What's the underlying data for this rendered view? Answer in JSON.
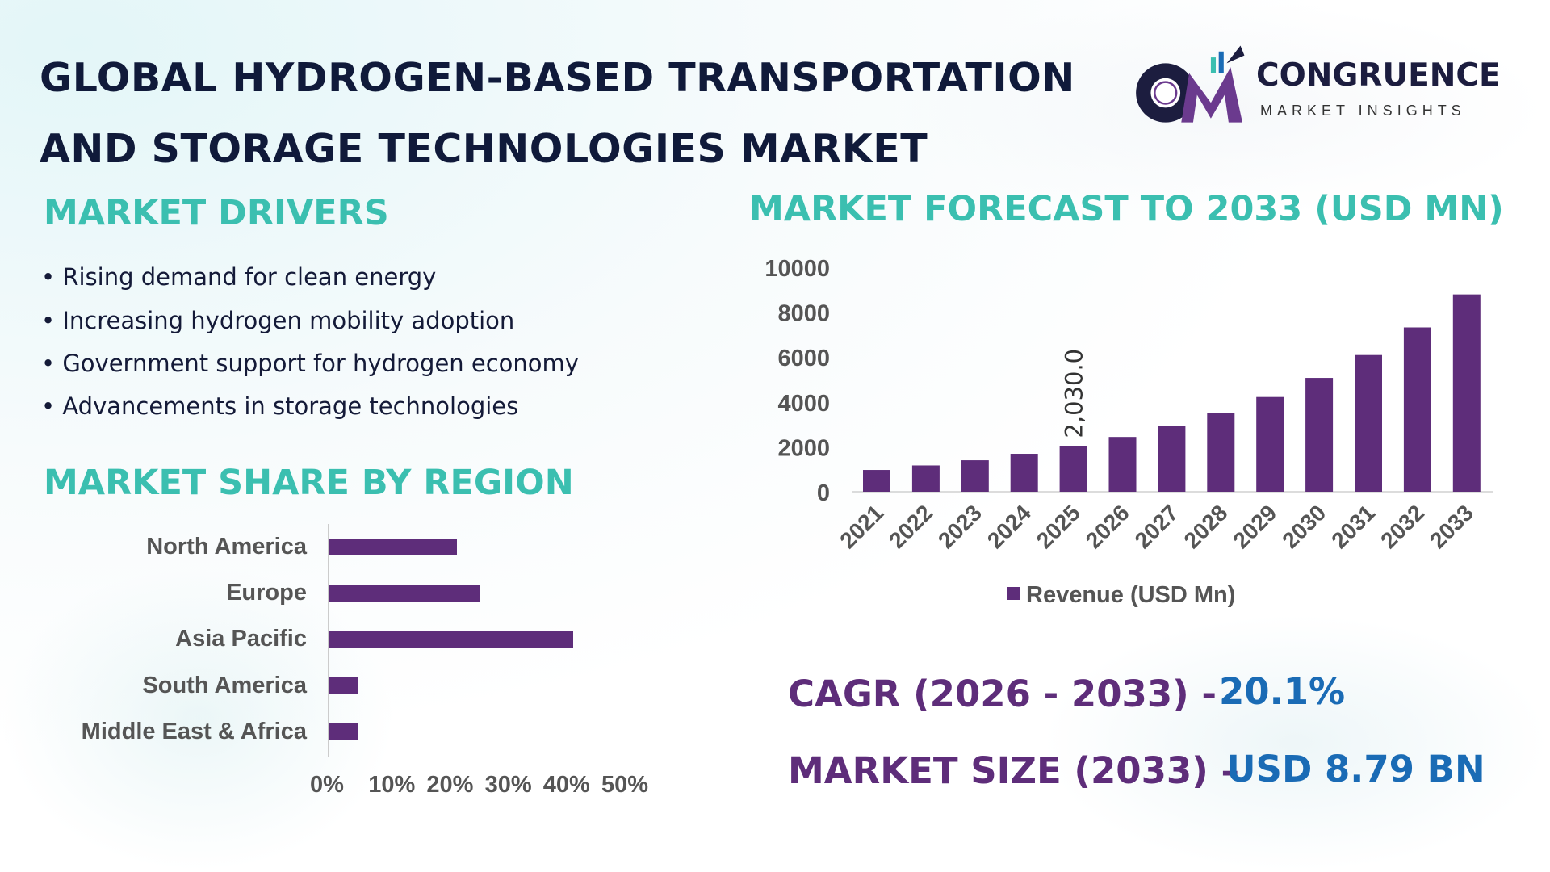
{
  "title": {
    "line1": "GLOBAL HYDROGEN-BASED TRANSPORTATION",
    "line2": "AND STORAGE TECHNOLOGIES MARKET"
  },
  "logo": {
    "name": "CONGRUENCE",
    "tagline": "MARKET INSIGHTS"
  },
  "drivers": {
    "heading": "MARKET DRIVERS",
    "items": [
      "Rising demand for clean energy",
      "Increasing hydrogen mobility adoption",
      "Government support for hydrogen economy",
      "Advancements in storage technologies"
    ]
  },
  "stats": {
    "cagr_label": "CAGR (2026 - 2033) -",
    "cagr_value": "20.1%",
    "size_label": "MARKET SIZE (2033) –",
    "size_value": "USD 8.79 BN"
  },
  "colors": {
    "bar": "#5e2d7a",
    "teal": "#3bbfb0",
    "blue": "#1a6bb5"
  },
  "chart_data": [
    {
      "type": "bar",
      "orientation": "horizontal",
      "title": "MARKET SHARE BY REGION",
      "categories": [
        "North America",
        "Europe",
        "Asia Pacific",
        "South America",
        "Middle East & Africa"
      ],
      "values": [
        22,
        26,
        42,
        5,
        5
      ],
      "unit": "%",
      "xlim": [
        0,
        50
      ],
      "tick_labels": [
        "0%",
        "10%",
        "20%",
        "30%",
        "40%",
        "50%"
      ],
      "grid": false
    },
    {
      "type": "bar",
      "title": "MARKET FORECAST TO 2033 (USD MN)",
      "categories": [
        "2021",
        "2022",
        "2023",
        "2024",
        "2025",
        "2026",
        "2027",
        "2028",
        "2029",
        "2030",
        "2031",
        "2032",
        "2033"
      ],
      "series": [
        {
          "name": "Revenue (USD Mn)",
          "values": [
            970,
            1170,
            1400,
            1690,
            2030,
            2440,
            2930,
            3520,
            4220,
            5070,
            6090,
            7320,
            8790
          ]
        }
      ],
      "data_labels": [
        {
          "category": "2025",
          "text": "2,030.0"
        }
      ],
      "ylim": [
        0,
        10000
      ],
      "yticks": [
        "0",
        "2000",
        "4000",
        "6000",
        "8000",
        "10000"
      ],
      "legend": "bottom",
      "grid": false
    }
  ]
}
